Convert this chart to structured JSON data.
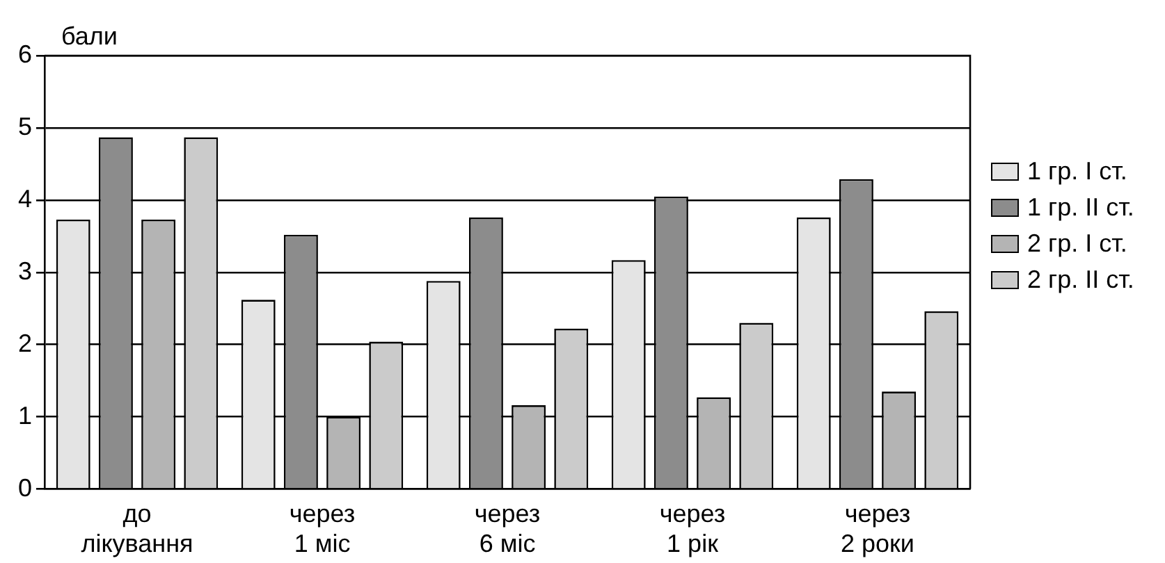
{
  "chart_data": {
    "type": "bar",
    "ylabel": "бали",
    "categories": [
      "до\nлікування",
      "через\n1 міс",
      "через\n6 міс",
      "через\n1 рік",
      "через\n2 роки"
    ],
    "series": [
      {
        "name": "1 гр. I ст.",
        "color": "#e4e4e4",
        "values": [
          3.73,
          2.62,
          2.88,
          3.17,
          3.76
        ]
      },
      {
        "name": "1 гр. II ст.",
        "color": "#8c8c8c",
        "values": [
          4.87,
          3.52,
          3.76,
          4.05,
          4.29
        ]
      },
      {
        "name": "2 гр. I ст.",
        "color": "#b4b4b4",
        "values": [
          3.73,
          1.0,
          1.16,
          1.27,
          1.35
        ]
      },
      {
        "name": "2 гр. II ст.",
        "color": "#cbcbcb",
        "values": [
          4.87,
          2.04,
          2.22,
          2.3,
          2.46
        ]
      }
    ],
    "ylim": [
      0,
      6
    ],
    "yticks": [
      0,
      1,
      2,
      3,
      4,
      5,
      6
    ],
    "grid": "y",
    "legend": "right"
  }
}
